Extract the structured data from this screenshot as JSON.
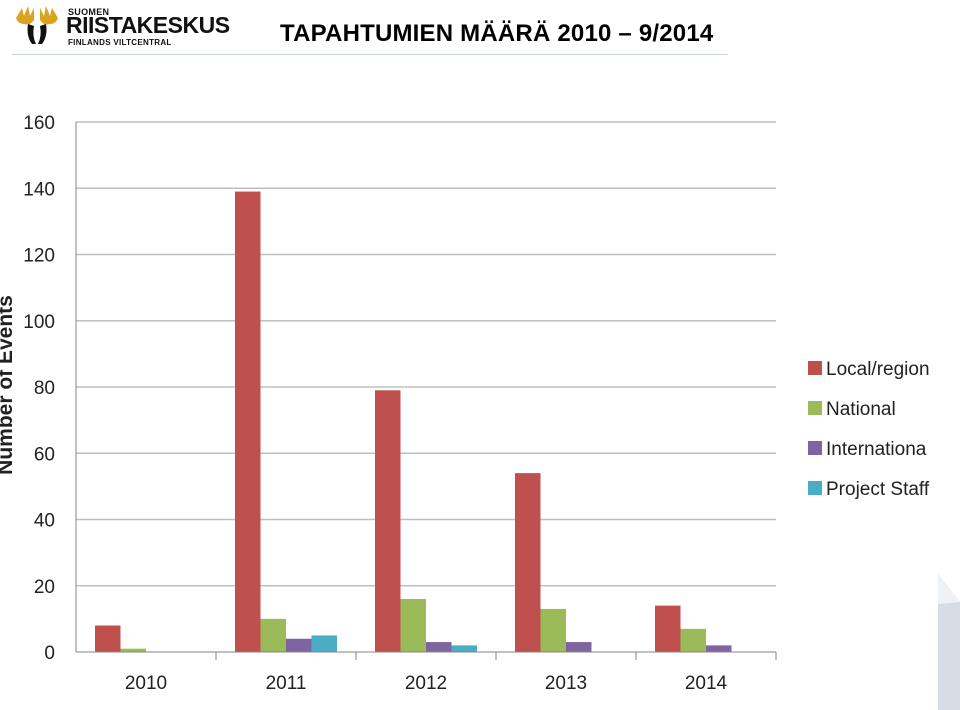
{
  "header": {
    "logo_top": "SUOMEN",
    "logo_main": "RIISTAKESKUS",
    "logo_sub": "FINLANDS VILTCENTRAL",
    "title": "TAPAHTUMIEN MÄÄRÄ 2010 – 9/2014"
  },
  "colors": {
    "local": "#c0504d",
    "national": "#9bbb59",
    "international": "#8064a2",
    "staff": "#4bacc6",
    "grid": "#bfbfbf",
    "logo_gold": "#d9a520"
  },
  "icons": {
    "logo": "elk-antler-logo-icon"
  },
  "chart_data": {
    "type": "bar",
    "title": "",
    "xlabel": "",
    "ylabel": "Number of Events",
    "ylim": [
      0,
      160
    ],
    "yticks": [
      0,
      20,
      40,
      60,
      80,
      100,
      120,
      140,
      160
    ],
    "grid": true,
    "legend_position": "right",
    "categories": [
      "2010",
      "2011",
      "2012",
      "2013",
      "2014"
    ],
    "series": [
      {
        "name": "Local/region",
        "values": [
          8,
          139,
          79,
          54,
          14
        ]
      },
      {
        "name": "National",
        "values": [
          1,
          10,
          16,
          13,
          7
        ]
      },
      {
        "name": "Internationa",
        "values": [
          0,
          4,
          3,
          3,
          2
        ]
      },
      {
        "name": "Project Staff",
        "values": [
          0,
          5,
          2,
          0,
          0
        ]
      }
    ]
  }
}
